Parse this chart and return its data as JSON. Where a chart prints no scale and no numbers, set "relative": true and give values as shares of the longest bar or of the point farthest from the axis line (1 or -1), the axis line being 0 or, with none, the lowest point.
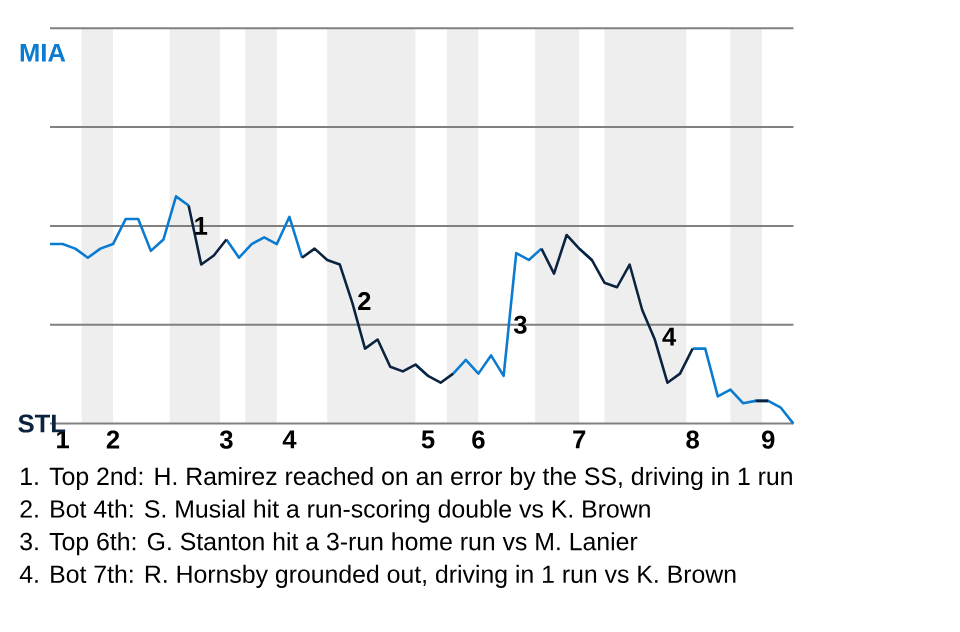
{
  "chart_data": {
    "type": "line",
    "relative": true,
    "categories": [
      null,
      "1",
      null,
      null,
      null,
      "2",
      null,
      null,
      null,
      null,
      null,
      null,
      null,
      null,
      "3",
      null,
      null,
      null,
      null,
      "4",
      null,
      null,
      null,
      null,
      null,
      null,
      null,
      null,
      null,
      null,
      "5",
      null,
      null,
      null,
      "6",
      null,
      null,
      null,
      null,
      null,
      null,
      null,
      "7",
      null,
      null,
      null,
      null,
      null,
      null,
      null,
      null,
      "8",
      null,
      null,
      null,
      null,
      null,
      "9",
      null,
      null
    ],
    "series": [
      {
        "color": "#0a7bd0",
        "values": [
          0.79,
          0.79,
          0.77,
          0.73,
          0.77,
          0.79,
          0.9,
          0.9,
          0.76,
          0.81,
          1,
          0.96,
          null,
          null,
          0.81,
          0.73,
          0.79,
          0.82,
          0.79,
          0.91,
          0.73,
          null,
          null,
          null,
          null,
          null,
          null,
          null,
          null,
          0.26,
          0.21,
          null,
          0.22,
          0.28,
          0.22,
          0.3,
          0.21,
          0.75,
          0.72,
          0.77,
          null,
          null,
          0.77,
          0.72,
          null,
          null,
          null,
          null,
          null,
          null,
          null,
          0.33,
          0.33,
          0.12,
          0.15,
          0.09,
          0.1,
          0.1,
          0.07,
          0
        ]
      },
      {
        "color": "#0c2340",
        "values": [
          null,
          null,
          null,
          null,
          null,
          null,
          null,
          null,
          null,
          null,
          null,
          0.96,
          0.7,
          0.74,
          0.81,
          null,
          null,
          null,
          null,
          null,
          0.73,
          0.77,
          0.72,
          0.7,
          0.53,
          0.33,
          0.37,
          0.25,
          0.23,
          0.26,
          0.21,
          0.18,
          0.22,
          null,
          null,
          null,
          null,
          null,
          null,
          0.77,
          0.66,
          0.83,
          0.77,
          0.72,
          0.62,
          0.6,
          0.7,
          0.5,
          0.37,
          0.18,
          0.22,
          0.33,
          null,
          null,
          null,
          null,
          0.1,
          0.1,
          null,
          null
        ]
      }
    ],
    "ref_lines": [
      {
        "axis": "y",
        "value": 0.435,
        "color": "#808080"
      },
      {
        "axis": "y",
        "value": 0.87,
        "color": "#808080"
      },
      {
        "axis": "y",
        "value": 1.305,
        "color": "#808080"
      },
      {
        "axis": "y",
        "value": 1.74,
        "color": "#808080"
      }
    ],
    "annotations": [
      "1",
      "2",
      "3",
      "4",
      "MIA",
      "STL",
      "1. Top 2nd: H. Ramirez reached on an error by the SS, driving in 1 run",
      "2. Bot 4th: S. Musial hit a run-scoring double vs K. Brown",
      "3. Top 6th: G. Stanton hit a 3-run home run vs M. Lanier",
      "4. Bot 7th: R. Hornsby grounded out, driving in 1 run vs K. Brown"
    ]
  }
}
